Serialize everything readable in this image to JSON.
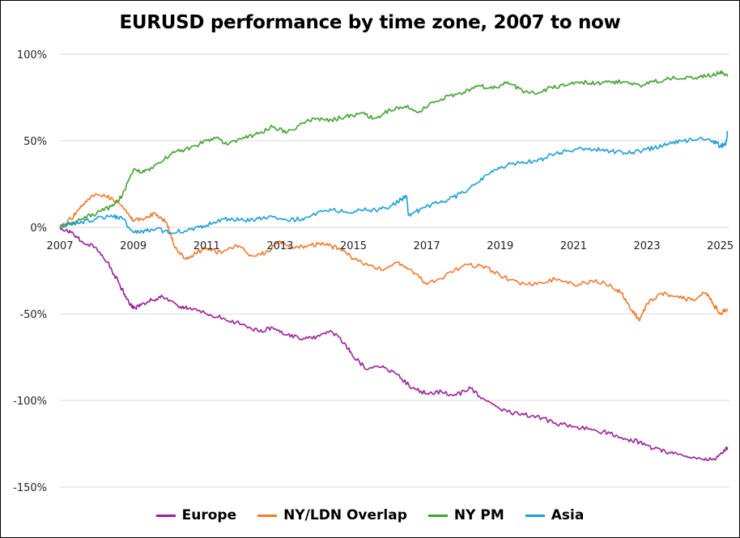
{
  "chart_data": {
    "type": "line",
    "title": "EURUSD performance by time zone, 2007 to now",
    "xlabel": "",
    "ylabel": "",
    "xlim": [
      2007,
      2025.25
    ],
    "ylim": [
      -160,
      100
    ],
    "x_ticks": [
      2007,
      2009,
      2011,
      2013,
      2015,
      2017,
      2019,
      2021,
      2023,
      2025
    ],
    "x_tick_labels": [
      "2007",
      "2009",
      "2011",
      "2013",
      "2015",
      "2017",
      "2019",
      "2021",
      "2023",
      "2025"
    ],
    "y_ticks": [
      100,
      50,
      0,
      -50,
      -100,
      -150
    ],
    "y_tick_labels": [
      "100%",
      "50%",
      "0%",
      "-50%",
      "-100%",
      "-150%"
    ],
    "grid": "horizontal",
    "legend_position": "bottom",
    "series": [
      {
        "name": "Europe",
        "color": "#9B1F9B",
        "x": [
          2007.0,
          2007.3,
          2007.6,
          2008.0,
          2008.3,
          2008.6,
          2008.8,
          2009.0,
          2009.2,
          2009.5,
          2009.8,
          2010.2,
          2010.5,
          2011.0,
          2011.5,
          2012.0,
          2012.4,
          2012.8,
          2013.2,
          2013.6,
          2014.0,
          2014.4,
          2014.8,
          2015.0,
          2015.4,
          2015.8,
          2016.2,
          2016.6,
          2017.0,
          2017.4,
          2017.8,
          2018.2,
          2018.6,
          2019.0,
          2019.5,
          2020.0,
          2020.5,
          2021.0,
          2021.5,
          2022.0,
          2022.4,
          2022.8,
          2023.2,
          2023.6,
          2024.0,
          2024.4,
          2024.8,
          2025.0,
          2025.2
        ],
        "y": [
          0,
          -3,
          -8,
          -12,
          -20,
          -32,
          -40,
          -47,
          -45,
          -42,
          -40,
          -45,
          -47,
          -50,
          -53,
          -56,
          -60,
          -58,
          -62,
          -65,
          -63,
          -60,
          -68,
          -75,
          -82,
          -80,
          -85,
          -93,
          -96,
          -95,
          -97,
          -93,
          -100,
          -105,
          -108,
          -109,
          -113,
          -115,
          -117,
          -119,
          -122,
          -124,
          -128,
          -130,
          -132,
          -133,
          -134,
          -131,
          -127
        ]
      },
      {
        "name": "NY/LDN Overlap",
        "color": "#F07A2D",
        "x": [
          2007.0,
          2007.3,
          2007.6,
          2007.9,
          2008.2,
          2008.5,
          2008.8,
          2009.0,
          2009.3,
          2009.6,
          2009.9,
          2010.1,
          2010.4,
          2010.7,
          2011.0,
          2011.4,
          2011.8,
          2012.2,
          2012.6,
          2013.0,
          2013.4,
          2013.8,
          2014.2,
          2014.6,
          2015.0,
          2015.4,
          2015.8,
          2016.2,
          2016.6,
          2017.0,
          2017.5,
          2018.0,
          2018.5,
          2019.0,
          2019.5,
          2020.0,
          2020.5,
          2021.0,
          2021.5,
          2022.0,
          2022.3,
          2022.6,
          2022.8,
          2023.0,
          2023.4,
          2023.8,
          2024.2,
          2024.6,
          2024.8,
          2025.0,
          2025.2
        ],
        "y": [
          0,
          5,
          12,
          18,
          19,
          15,
          10,
          4,
          5,
          8,
          3,
          -10,
          -18,
          -15,
          -12,
          -15,
          -10,
          -16,
          -15,
          -8,
          -12,
          -10,
          -10,
          -12,
          -18,
          -22,
          -25,
          -20,
          -25,
          -33,
          -28,
          -22,
          -22,
          -28,
          -32,
          -33,
          -30,
          -33,
          -31,
          -33,
          -38,
          -48,
          -54,
          -44,
          -38,
          -40,
          -42,
          -38,
          -44,
          -50,
          -47
        ]
      },
      {
        "name": "NY PM",
        "color": "#3FA32F",
        "x": [
          2007.0,
          2007.3,
          2007.6,
          2008.0,
          2008.4,
          2008.7,
          2009.0,
          2009.3,
          2009.6,
          2010.0,
          2010.4,
          2010.8,
          2011.2,
          2011.6,
          2012.0,
          2012.4,
          2012.8,
          2013.2,
          2013.6,
          2014.0,
          2014.4,
          2014.8,
          2015.2,
          2015.6,
          2016.0,
          2016.4,
          2016.8,
          2017.2,
          2017.6,
          2018.0,
          2018.4,
          2018.8,
          2019.2,
          2019.6,
          2020.0,
          2020.4,
          2020.8,
          2021.2,
          2021.6,
          2022.0,
          2022.4,
          2022.8,
          2023.2,
          2023.6,
          2024.0,
          2024.4,
          2024.8,
          2025.0,
          2025.2
        ],
        "y": [
          0,
          2,
          5,
          8,
          12,
          18,
          33,
          32,
          36,
          42,
          45,
          48,
          52,
          48,
          52,
          54,
          58,
          55,
          60,
          63,
          62,
          64,
          66,
          63,
          68,
          70,
          67,
          72,
          76,
          78,
          82,
          80,
          84,
          79,
          77,
          81,
          82,
          84,
          83,
          84,
          84,
          82,
          84,
          86,
          86,
          87,
          88,
          90,
          87
        ]
      },
      {
        "name": "Asia",
        "color": "#1C9FD8",
        "x": [
          2007.0,
          2007.3,
          2007.6,
          2008.0,
          2008.4,
          2008.7,
          2009.0,
          2009.3,
          2009.6,
          2010.0,
          2010.4,
          2010.8,
          2011.2,
          2011.6,
          2012.0,
          2012.4,
          2012.8,
          2013.2,
          2013.6,
          2014.0,
          2014.4,
          2014.8,
          2015.2,
          2015.6,
          2016.0,
          2016.3,
          2016.45,
          2016.5,
          2016.8,
          2017.2,
          2017.6,
          2018.0,
          2018.4,
          2018.8,
          2019.2,
          2019.6,
          2020.0,
          2020.4,
          2020.8,
          2021.2,
          2021.6,
          2022.0,
          2022.4,
          2022.8,
          2023.2,
          2023.6,
          2024.0,
          2024.4,
          2024.8,
          2025.0,
          2025.15,
          2025.2
        ],
        "y": [
          0,
          2,
          3,
          5,
          7,
          5,
          -3,
          -2,
          -1,
          -3,
          -2,
          0,
          3,
          5,
          4,
          5,
          6,
          4,
          5,
          8,
          10,
          9,
          10,
          10,
          12,
          16,
          18,
          7,
          10,
          14,
          16,
          20,
          26,
          32,
          36,
          38,
          38,
          42,
          44,
          46,
          45,
          44,
          43,
          44,
          46,
          48,
          50,
          51,
          50,
          47,
          48,
          55
        ]
      }
    ]
  }
}
